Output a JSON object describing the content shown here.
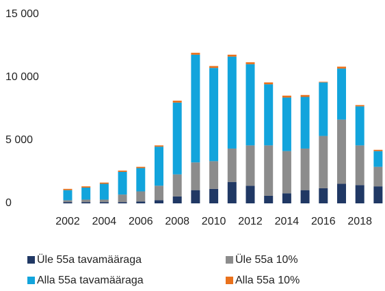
{
  "chart_data": {
    "type": "stacked_bar",
    "categories": [
      "2002",
      null,
      "2004",
      null,
      "2006",
      null,
      "2008",
      null,
      "2010",
      null,
      "2012",
      null,
      "2014",
      null,
      "2016",
      null,
      "2018",
      null
    ],
    "series": [
      {
        "name": "Üle 55a tavamääraga",
        "color": "#203864",
        "values": [
          100,
          100,
          100,
          100,
          150,
          250,
          550,
          1050,
          1150,
          1700,
          1400,
          600,
          800,
          1050,
          1200,
          1550,
          1450,
          1350
        ]
      },
      {
        "name": "Üle 55a 10%",
        "color": "#8c8c8c",
        "values": [
          150,
          200,
          200,
          600,
          800,
          1150,
          1750,
          2200,
          2200,
          2650,
          3200,
          4000,
          3350,
          3300,
          4150,
          5100,
          3150,
          1550
        ]
      },
      {
        "name": "Alla 55a tavamääraga",
        "color": "#12a4dc",
        "values": [
          800,
          950,
          1250,
          1800,
          1850,
          3100,
          5700,
          8550,
          7400,
          7300,
          6450,
          4850,
          4250,
          4100,
          4250,
          4050,
          3100,
          1250
        ]
      },
      {
        "name": "Alla 55a 10%",
        "color": "#e9711c",
        "values": [
          100,
          100,
          100,
          100,
          100,
          100,
          150,
          150,
          150,
          150,
          150,
          150,
          150,
          150,
          50,
          150,
          100,
          100
        ]
      }
    ],
    "ylim": [
      0,
      15000
    ],
    "yticks": [
      0,
      {
        "value": 5000,
        "label": "5 000"
      },
      {
        "value": 10000,
        "label": "10 000"
      },
      {
        "value": 15000,
        "label": "15 000"
      }
    ]
  }
}
